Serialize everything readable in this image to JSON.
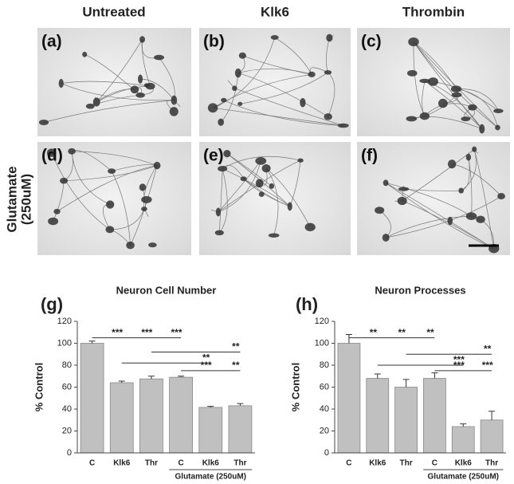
{
  "panels": {
    "columns": [
      "Untreated",
      "Klk6",
      "Thrombin"
    ],
    "row_label": [
      "Glutamate",
      "(250uM)"
    ],
    "labels": [
      "(a)",
      "(b)",
      "(c)",
      "(d)",
      "(e)",
      "(f)"
    ]
  },
  "chart_data": [
    {
      "type": "bar",
      "panel_label": "(g)",
      "title": "Neuron Cell Number",
      "y_label": "% Control",
      "categories": [
        "C",
        "Klk6",
        "Thr",
        "C",
        "Klk6",
        "Thr"
      ],
      "group_label": "Glutamate (250uM)",
      "values": [
        100,
        64,
        67.5,
        69,
        41.5,
        43
      ],
      "errors": [
        2,
        1.5,
        2.5,
        1,
        1,
        2
      ],
      "color": "#c0c0c0",
      "ylim": [
        0,
        120
      ],
      "yticks": [
        0,
        20,
        40,
        60,
        80,
        100,
        120
      ],
      "significance": [
        {
          "span": [
            0,
            3
          ],
          "level": 105,
          "stars": [
            {
              "at": 1,
              "text": "***"
            },
            {
              "at": 2,
              "text": "***"
            },
            {
              "at": 3,
              "text": "***"
            }
          ]
        },
        {
          "span": [
            2,
            5
          ],
          "level": 92,
          "stars": [
            {
              "at": 5,
              "text": "**"
            }
          ]
        },
        {
          "span": [
            1,
            4
          ],
          "level": 82,
          "stars": [
            {
              "at": 4,
              "text": "**"
            }
          ]
        },
        {
          "span": [
            3,
            5
          ],
          "level": 75,
          "stars": [
            {
              "at": 4,
              "text": "***"
            },
            {
              "at": 5,
              "text": "**"
            }
          ]
        }
      ]
    },
    {
      "type": "bar",
      "panel_label": "(h)",
      "title": "Neuron Processes",
      "y_label": "% Control",
      "categories": [
        "C",
        "Klk6",
        "Thr",
        "C",
        "Klk6",
        "Thr"
      ],
      "group_label": "Glutamate (250uM)",
      "values": [
        100,
        68,
        60,
        68,
        24,
        30
      ],
      "errors": [
        8,
        4,
        7,
        5,
        2.5,
        8
      ],
      "color": "#c0c0c0",
      "ylim": [
        0,
        120
      ],
      "yticks": [
        0,
        20,
        40,
        60,
        80,
        100,
        120
      ],
      "significance": [
        {
          "span": [
            0,
            3
          ],
          "level": 105,
          "stars": [
            {
              "at": 1,
              "text": "**"
            },
            {
              "at": 2,
              "text": "**"
            },
            {
              "at": 3,
              "text": "**"
            }
          ]
        },
        {
          "span": [
            2,
            5
          ],
          "level": 90,
          "stars": [
            {
              "at": 5,
              "text": "**"
            }
          ]
        },
        {
          "span": [
            1,
            4
          ],
          "level": 80,
          "stars": [
            {
              "at": 4,
              "text": "***"
            }
          ]
        },
        {
          "span": [
            3,
            5
          ],
          "level": 75,
          "stars": [
            {
              "at": 4,
              "text": "***"
            },
            {
              "at": 5,
              "text": "***"
            }
          ]
        }
      ]
    }
  ]
}
